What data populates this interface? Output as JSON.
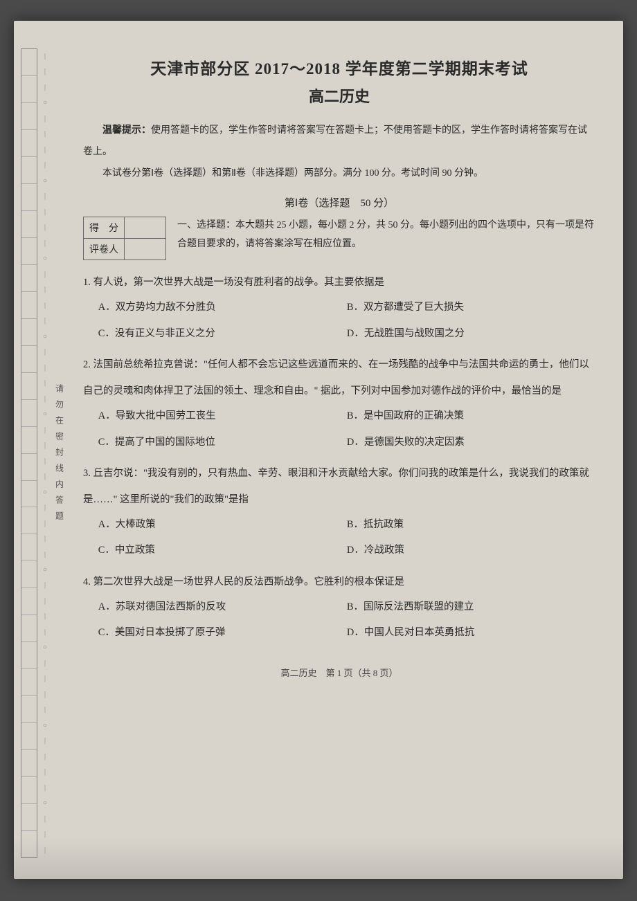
{
  "header": {
    "title": "天津市部分区 2017～2018 学年度第二学期期末考试",
    "subtitle": "高二历史",
    "tip_label": "温馨提示：",
    "tip_body": "使用答题卡的区，学生作答时请将答案写在答题卡上；不使用答题卡的区，学生作答时请将答案写在试卷上。",
    "layout_note": "本试卷分第Ⅰ卷（选择题）和第Ⅱ卷（非选择题）两部分。满分 100 分。考试时间 90 分钟。"
  },
  "section1": {
    "heading": "第Ⅰ卷（选择题　50 分）",
    "score_label1": "得　分",
    "score_label2": "评卷人",
    "instructions": "一、选择题：本大题共 25 小题，每小题 2 分，共 50 分。每小题列出的四个选项中，只有一项是符合题目要求的，请将答案涂写在相应位置。"
  },
  "questions": [
    {
      "num": "1.",
      "stem": "有人说，第一次世界大战是一场没有胜利者的战争。其主要依据是",
      "opts": [
        "A．双方势均力敌不分胜负",
        "B．双方都遭受了巨大损失",
        "C．没有正义与非正义之分",
        "D．无战胜国与战败国之分"
      ]
    },
    {
      "num": "2.",
      "stem": "法国前总统希拉克曾说：\"任何人都不会忘记这些远道而来的、在一场残酷的战争中与法国共命运的勇士，他们以自己的灵魂和肉体捍卫了法国的领土、理念和自由。\" 据此，下列对中国参加对德作战的评价中，最恰当的是",
      "opts": [
        "A．导致大批中国劳工丧生",
        "B．是中国政府的正确决策",
        "C．提高了中国的国际地位",
        "D．是德国失败的决定因素"
      ]
    },
    {
      "num": "3.",
      "stem": "丘吉尔说：\"我没有别的，只有热血、辛劳、眼泪和汗水贡献给大家。你们问我的政策是什么，我说我们的政策就是……\" 这里所说的\"我们的政策\"是指",
      "opts": [
        "A．大棒政策",
        "B．抵抗政策",
        "C．中立政策",
        "D．冷战政策"
      ]
    },
    {
      "num": "4.",
      "stem": "第二次世界大战是一场世界人民的反法西斯战争。它胜利的根本保证是",
      "opts": [
        "A．苏联对德国法西斯的反攻",
        "B．国际反法西斯联盟的建立",
        "C．美国对日本投掷了原子弹",
        "D．中国人民对日本英勇抵抗"
      ]
    }
  ],
  "footer": "高二历史　第 1 页（共 8 页）",
  "margin": {
    "vertical_text": "请 勿 在 密 封 线 内 答 题",
    "dash": "|",
    "circle": "○"
  },
  "colors": {
    "page_bg": "#d8d4cc",
    "body_bg": "#4a4a4a",
    "text": "#2a2a2a",
    "border": "#888888"
  }
}
